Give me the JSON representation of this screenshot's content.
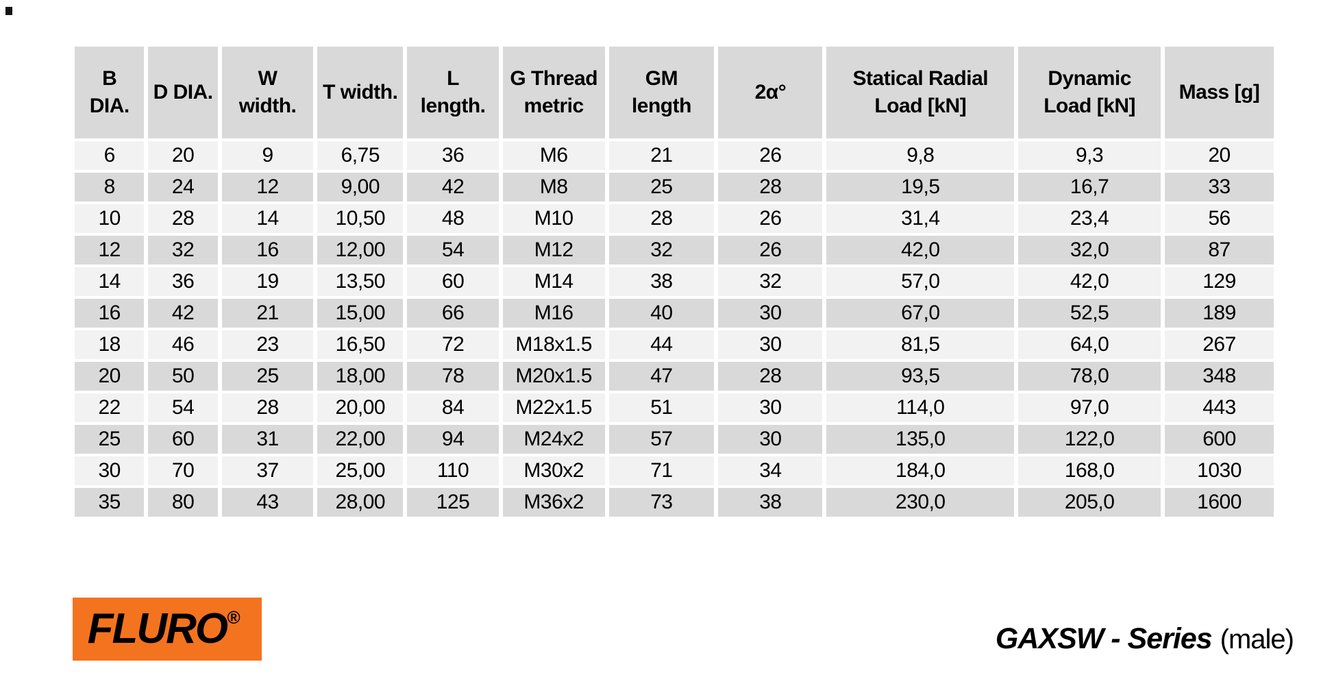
{
  "table": {
    "headers": [
      "B\nDIA.",
      "D DIA.",
      "W\nwidth.",
      "T width.",
      "L\nlength.",
      "G Thread\nmetric",
      "GM\nlength",
      "2α°",
      "Statical Radial\nLoad [kN]",
      "Dynamic\nLoad [kN]",
      "Mass [g]"
    ],
    "rows": [
      [
        "6",
        "20",
        "9",
        "6,75",
        "36",
        "M6",
        "21",
        "26",
        "9,8",
        "9,3",
        "20"
      ],
      [
        "8",
        "24",
        "12",
        "9,00",
        "42",
        "M8",
        "25",
        "28",
        "19,5",
        "16,7",
        "33"
      ],
      [
        "10",
        "28",
        "14",
        "10,50",
        "48",
        "M10",
        "28",
        "26",
        "31,4",
        "23,4",
        "56"
      ],
      [
        "12",
        "32",
        "16",
        "12,00",
        "54",
        "M12",
        "32",
        "26",
        "42,0",
        "32,0",
        "87"
      ],
      [
        "14",
        "36",
        "19",
        "13,50",
        "60",
        "M14",
        "38",
        "32",
        "57,0",
        "42,0",
        "129"
      ],
      [
        "16",
        "42",
        "21",
        "15,00",
        "66",
        "M16",
        "40",
        "30",
        "67,0",
        "52,5",
        "189"
      ],
      [
        "18",
        "46",
        "23",
        "16,50",
        "72",
        "M18x1.5",
        "44",
        "30",
        "81,5",
        "64,0",
        "267"
      ],
      [
        "20",
        "50",
        "25",
        "18,00",
        "78",
        "M20x1.5",
        "47",
        "28",
        "93,5",
        "78,0",
        "348"
      ],
      [
        "22",
        "54",
        "28",
        "20,00",
        "84",
        "M22x1.5",
        "51",
        "30",
        "114,0",
        "97,0",
        "443"
      ],
      [
        "25",
        "60",
        "31",
        "22,00",
        "94",
        "M24x2",
        "57",
        "30",
        "135,0",
        "122,0",
        "600"
      ],
      [
        "30",
        "70",
        "37",
        "25,00",
        "110",
        "M30x2",
        "71",
        "34",
        "184,0",
        "168,0",
        "1030"
      ],
      [
        "35",
        "80",
        "43",
        "28,00",
        "125",
        "M36x2",
        "73",
        "38",
        "230,0",
        "205,0",
        "1600"
      ]
    ]
  },
  "chart_data": {
    "type": "table",
    "title": "GAXSW - Series (male) dimensions and load ratings",
    "columns": [
      "B DIA.",
      "D DIA.",
      "W width.",
      "T width.",
      "L length.",
      "G Thread metric",
      "GM length",
      "2α°",
      "Statical Radial Load [kN]",
      "Dynamic Load [kN]",
      "Mass [g]"
    ],
    "rows": [
      [
        6,
        20,
        9,
        6.75,
        36,
        "M6",
        21,
        26,
        9.8,
        9.3,
        20
      ],
      [
        8,
        24,
        12,
        9.0,
        42,
        "M8",
        25,
        28,
        19.5,
        16.7,
        33
      ],
      [
        10,
        28,
        14,
        10.5,
        48,
        "M10",
        28,
        26,
        31.4,
        23.4,
        56
      ],
      [
        12,
        32,
        16,
        12.0,
        54,
        "M12",
        32,
        26,
        42.0,
        32.0,
        87
      ],
      [
        14,
        36,
        19,
        13.5,
        60,
        "M14",
        38,
        32,
        57.0,
        42.0,
        129
      ],
      [
        16,
        42,
        21,
        15.0,
        66,
        "M16",
        40,
        30,
        67.0,
        52.5,
        189
      ],
      [
        18,
        46,
        23,
        16.5,
        72,
        "M18x1.5",
        44,
        30,
        81.5,
        64.0,
        267
      ],
      [
        20,
        50,
        25,
        18.0,
        78,
        "M20x1.5",
        47,
        28,
        93.5,
        78.0,
        348
      ],
      [
        22,
        54,
        28,
        20.0,
        84,
        "M22x1.5",
        51,
        30,
        114.0,
        97.0,
        443
      ],
      [
        25,
        60,
        31,
        22.0,
        94,
        "M24x2",
        57,
        30,
        135.0,
        122.0,
        600
      ],
      [
        30,
        70,
        37,
        25.0,
        110,
        "M30x2",
        71,
        34,
        184.0,
        168.0,
        1030
      ],
      [
        35,
        80,
        43,
        28.0,
        125,
        "M36x2",
        73,
        38,
        230.0,
        205.0,
        1600
      ]
    ]
  },
  "footer": {
    "logo_text": "FLURO",
    "logo_reg": "®",
    "series_name": "GAXSW - Series",
    "series_suffix": "(male)"
  },
  "colors": {
    "header_bg": "#d9d9d9",
    "row_even_bg": "#d9d9d9",
    "row_odd_bg": "#f2f2f2",
    "logo_orange": "#f4731f"
  }
}
